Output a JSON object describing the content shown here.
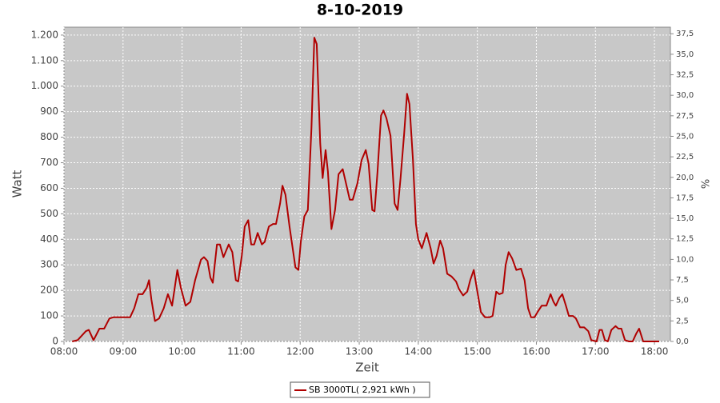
{
  "chart_data": {
    "type": "line",
    "title": "8-10-2019",
    "x_label": "Zeit",
    "y_label": "Watt",
    "y2_label": "%",
    "xlim": [
      8,
      18.27
    ],
    "ylim": [
      0,
      1231
    ],
    "y2lim": [
      0,
      38.3
    ],
    "grid": true,
    "legend": "bottom",
    "xticks": [
      {
        "value": 8,
        "label": "08:00"
      },
      {
        "value": 9,
        "label": "09:00"
      },
      {
        "value": 10,
        "label": "10:00"
      },
      {
        "value": 11,
        "label": "11:00"
      },
      {
        "value": 12,
        "label": "12:00"
      },
      {
        "value": 13,
        "label": "13:00"
      },
      {
        "value": 14,
        "label": "14:00"
      },
      {
        "value": 15,
        "label": "15:00"
      },
      {
        "value": 16,
        "label": "16:00"
      },
      {
        "value": 17,
        "label": "17:00"
      },
      {
        "value": 18,
        "label": "18:00"
      }
    ],
    "yticks": [
      0,
      100,
      200,
      300,
      400,
      500,
      600,
      700,
      800,
      900,
      {
        "value": 1000,
        "label": "1.000"
      },
      {
        "value": 1100,
        "label": "1.100"
      },
      {
        "value": 1200,
        "label": "1.200"
      }
    ],
    "y2ticks": [
      {
        "value": 0,
        "label": "0,0"
      },
      {
        "value": 2.5,
        "label": "2,5"
      },
      {
        "value": 5,
        "label": "5,0"
      },
      {
        "value": 7.5,
        "label": "7,5"
      },
      {
        "value": 10,
        "label": "10,0"
      },
      {
        "value": 12.5,
        "label": "12,5"
      },
      {
        "value": 15,
        "label": "15,0"
      },
      {
        "value": 17.5,
        "label": "17,5"
      },
      {
        "value": 20,
        "label": "20,0"
      },
      {
        "value": 22.5,
        "label": "22,5"
      },
      {
        "value": 25,
        "label": "25,0"
      },
      {
        "value": 27.5,
        "label": "27,5"
      },
      {
        "value": 30,
        "label": "30,0"
      },
      {
        "value": 32.5,
        "label": "32,5"
      },
      {
        "value": 35,
        "label": "35,0"
      },
      {
        "value": 37.5,
        "label": "37,5"
      }
    ],
    "x": [
      8.14,
      8.23,
      8.37,
      8.42,
      8.5,
      8.6,
      8.68,
      8.77,
      8.84,
      8.92,
      9.06,
      9.12,
      9.19,
      9.26,
      9.33,
      9.4,
      9.44,
      9.48,
      9.54,
      9.61,
      9.69,
      9.76,
      9.83,
      9.92,
      9.98,
      10.06,
      10.14,
      10.22,
      10.32,
      10.37,
      10.43,
      10.48,
      10.52,
      10.59,
      10.64,
      10.7,
      10.79,
      10.85,
      10.91,
      10.95,
      11.01,
      11.06,
      11.12,
      11.17,
      11.22,
      11.28,
      11.35,
      11.4,
      11.47,
      11.54,
      11.59,
      11.66,
      11.7,
      11.75,
      11.82,
      11.92,
      11.97,
      12.01,
      12.07,
      12.13,
      12.19,
      12.24,
      12.28,
      12.34,
      12.38,
      12.43,
      12.47,
      12.53,
      12.59,
      12.65,
      12.72,
      12.77,
      12.84,
      12.89,
      12.97,
      13.04,
      13.11,
      13.16,
      13.22,
      13.26,
      13.31,
      13.37,
      13.41,
      13.46,
      13.53,
      13.6,
      13.65,
      13.7,
      13.76,
      13.81,
      13.85,
      13.91,
      13.96,
      14.0,
      14.06,
      14.14,
      14.21,
      14.26,
      14.31,
      14.37,
      14.42,
      14.49,
      14.56,
      14.64,
      14.69,
      14.76,
      14.83,
      14.88,
      14.94,
      14.99,
      15.06,
      15.13,
      15.21,
      15.26,
      15.32,
      15.37,
      15.43,
      15.48,
      15.53,
      15.59,
      15.66,
      15.74,
      15.8,
      15.86,
      15.91,
      15.97,
      16.02,
      16.09,
      16.17,
      16.24,
      16.29,
      16.33,
      16.39,
      16.44,
      16.5,
      16.55,
      16.62,
      16.67,
      16.74,
      16.81,
      16.88,
      16.93,
      17.02,
      17.07,
      17.11,
      17.16,
      17.21,
      17.27,
      17.34,
      17.39,
      17.44,
      17.5,
      17.57,
      17.63,
      17.69,
      17.74,
      17.81,
      17.93,
      18.08
    ],
    "series": [
      {
        "name": "SB 3000TL( 2,921 kWh )",
        "color": "#b00000",
        "values": [
          0,
          5,
          40,
          45,
          5,
          50,
          50,
          90,
          95,
          95,
          95,
          95,
          130,
          185,
          185,
          210,
          240,
          165,
          80,
          90,
          130,
          185,
          140,
          280,
          210,
          140,
          155,
          240,
          320,
          330,
          315,
          250,
          230,
          380,
          380,
          330,
          380,
          350,
          240,
          235,
          335,
          450,
          475,
          380,
          380,
          425,
          380,
          390,
          450,
          460,
          460,
          540,
          610,
          575,
          450,
          290,
          280,
          390,
          490,
          515,
          835,
          1190,
          1165,
          775,
          640,
          750,
          665,
          440,
          515,
          655,
          675,
          625,
          555,
          555,
          620,
          710,
          750,
          695,
          515,
          510,
          665,
          885,
          905,
          875,
          805,
          540,
          515,
          640,
          810,
          970,
          930,
          710,
          460,
          400,
          365,
          425,
          365,
          305,
          335,
          395,
          365,
          265,
          255,
          235,
          205,
          180,
          195,
          240,
          280,
          210,
          115,
          95,
          95,
          100,
          195,
          185,
          190,
          300,
          350,
          325,
          280,
          285,
          240,
          130,
          95,
          95,
          115,
          140,
          140,
          185,
          155,
          140,
          170,
          185,
          140,
          100,
          100,
          90,
          55,
          55,
          40,
          5,
          0,
          45,
          45,
          5,
          0,
          45,
          60,
          50,
          50,
          5,
          0,
          0,
          30,
          50,
          0,
          0,
          0
        ]
      }
    ]
  }
}
